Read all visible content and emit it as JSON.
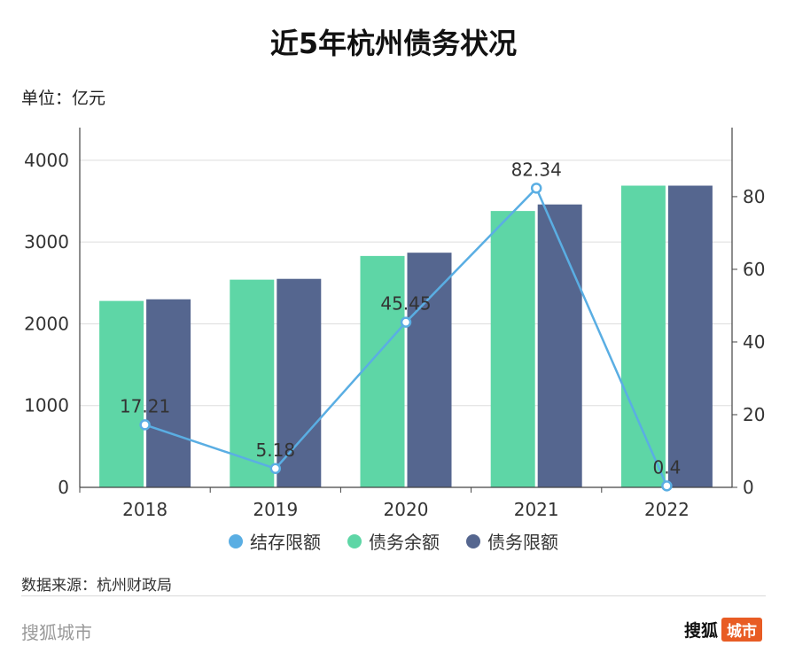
{
  "header": {
    "title": "近5年杭州债务状况",
    "unit": "单位：亿元"
  },
  "colors": {
    "line": "#5aaee3",
    "balance": "#5ed6a6",
    "limit": "#55668f"
  },
  "chart_data": {
    "type": "bar",
    "categories": [
      "2018",
      "2019",
      "2020",
      "2021",
      "2022"
    ],
    "series": [
      {
        "name": "债务余额",
        "axis": "left",
        "values": [
          2280,
          2540,
          2830,
          3380,
          3690
        ]
      },
      {
        "name": "债务限额",
        "axis": "left",
        "values": [
          2300,
          2550,
          2870,
          3460,
          3690
        ]
      },
      {
        "name": "结存限额",
        "axis": "right",
        "type": "line",
        "values": [
          17.21,
          5.18,
          45.45,
          82.34,
          0.4
        ],
        "labels": [
          "17.21",
          "5.18",
          "45.45",
          "82.34",
          "0.4"
        ]
      }
    ],
    "y_left": {
      "lim": [
        0,
        4400
      ],
      "ticks": [
        "0",
        "1000",
        "2000",
        "3000",
        "4000"
      ],
      "tick_values": [
        0,
        1000,
        2000,
        3000,
        4000
      ]
    },
    "y_right": {
      "lim": [
        0,
        99
      ],
      "ticks": [
        "0",
        "20",
        "40",
        "60",
        "80"
      ],
      "tick_values": [
        0,
        20,
        40,
        60,
        80
      ]
    },
    "grid": true,
    "legend_position": "bottom"
  },
  "legend": [
    "结存限额",
    "债务余额",
    "债务限额"
  ],
  "footer": {
    "source": "数据来源：杭州财政局",
    "brand_left": "搜狐城市",
    "brand_right_a": "搜狐",
    "brand_right_b": "城市"
  }
}
